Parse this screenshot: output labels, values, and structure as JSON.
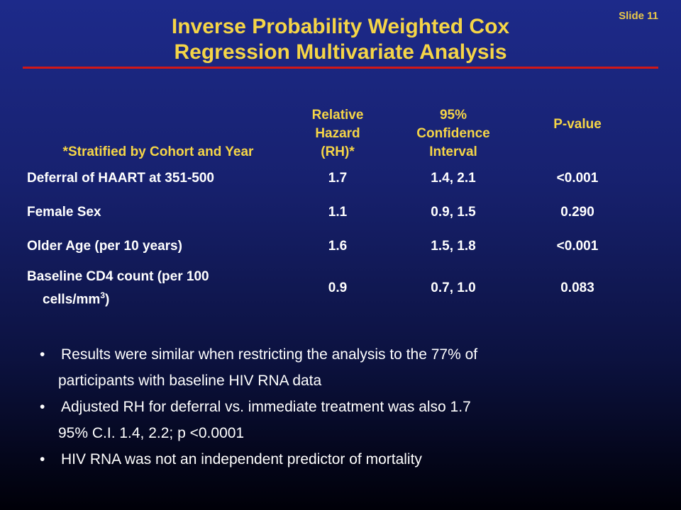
{
  "slide_number": "Slide 11",
  "title": {
    "line1": "Inverse Probability Weighted Cox",
    "line2": "Regression Multivariate Analysis"
  },
  "table": {
    "stub_note": "*Stratified by Cohort and Year",
    "columns": [
      {
        "lines": [
          "Relative",
          "Hazard",
          "(RH)*"
        ]
      },
      {
        "lines": [
          "95%",
          "Confidence",
          "Interval"
        ]
      },
      {
        "lines": [
          "P-value"
        ]
      }
    ],
    "rows": [
      {
        "label": "Deferral of HAART at 351-500",
        "rh": "1.7",
        "ci": "1.4, 2.1",
        "p": "<0.001"
      },
      {
        "label": "Female Sex",
        "rh": "1.1",
        "ci": "0.9, 1.5",
        "p": "0.290"
      },
      {
        "label": "Older Age (per 10 years)",
        "rh": "1.6",
        "ci": "1.5, 1.8",
        "p": "<0.001"
      },
      {
        "label_line1": "Baseline CD4 count (per 100",
        "label_line2": "cells/mm",
        "label_sup": "3",
        "label_tail": ")",
        "rh": "0.9",
        "ci": "0.7, 1.0",
        "p": "0.083"
      }
    ]
  },
  "bullets": [
    {
      "line1": "Results were similar when restricting the analysis to the 77% of",
      "line2": "participants with baseline HIV RNA data"
    },
    {
      "line1": "Adjusted RH for deferral vs. immediate treatment was also 1.7",
      "line2": "95% C.I. 1.4, 2.2; p <0.0001"
    },
    {
      "line1": "HIV RNA was not an independent predictor of mortality"
    }
  ],
  "bullet_glyph": "•",
  "colors": {
    "title": "#f5d547",
    "rule": "#d01818",
    "background_top": "#1d2a8a",
    "background_bottom": "#000008"
  }
}
